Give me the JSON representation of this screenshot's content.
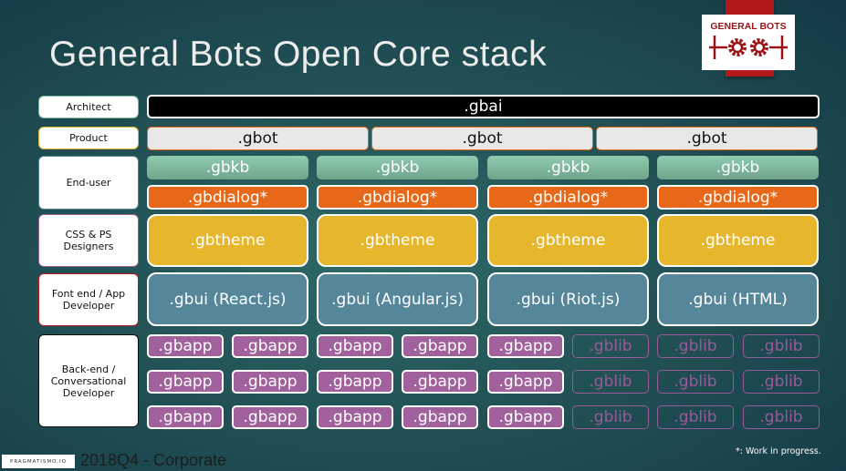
{
  "title": "General Bots Open Core stack",
  "logo": {
    "text": "GENERAL BOTS"
  },
  "roles": [
    {
      "label": "Architect",
      "border": "#7fb99d"
    },
    {
      "label": "Product",
      "border": "#e6b72c"
    },
    {
      "label": "End-user",
      "border": "#55869a"
    },
    {
      "label": "CSS & PS\nDesigners",
      "border": "#a0619c"
    },
    {
      "label": "Font end / App\nDeveloper",
      "border": "#c0181b"
    },
    {
      "label": "Back-end  /\nConversational\nDeveloper",
      "border": "#111111"
    }
  ],
  "gbai": ".gbai",
  "gbot": [
    ".gbot",
    ".gbot",
    ".gbot"
  ],
  "gbkb": [
    ".gbkb",
    ".gbkb",
    ".gbkb",
    ".gbkb"
  ],
  "gbdialog": [
    ".gbdialog*",
    ".gbdialog*",
    ".gbdialog*",
    ".gbdialog*"
  ],
  "gbtheme": [
    ".gbtheme",
    ".gbtheme",
    ".gbtheme",
    ".gbtheme"
  ],
  "gbui": [
    ".gbui (React.js)",
    ".gbui (Angular.js)",
    ".gbui (Riot.js)",
    ".gbui (HTML)"
  ],
  "packages": [
    [
      ".gbapp",
      ".gbapp",
      ".gbapp",
      ".gbapp",
      ".gbapp",
      ".gblib",
      ".gblib",
      ".gblib"
    ],
    [
      ".gbapp",
      ".gbapp",
      ".gbapp",
      ".gbapp",
      ".gbapp",
      ".gblib",
      ".gblib",
      ".gblib"
    ],
    [
      ".gbapp",
      ".gbapp",
      ".gbapp",
      ".gbapp",
      ".gbapp",
      ".gblib",
      ".gblib",
      ".gblib"
    ]
  ],
  "footer": {
    "company": "PRAGMATISMO.IO",
    "text": "2018Q4 - Corporate",
    "note": "*: Work in progress."
  }
}
